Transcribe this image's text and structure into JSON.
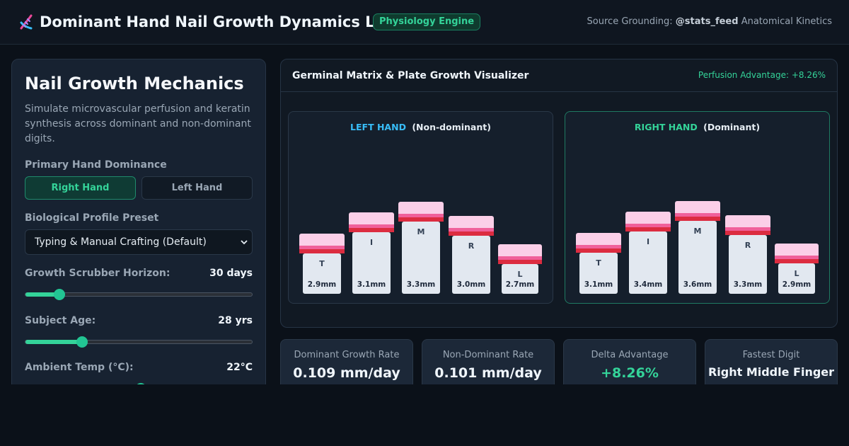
{
  "header": {
    "title": "Dominant Hand Nail Growth Dynamics Lab",
    "badge": "Physiology Engine",
    "source_prefix": "Source Grounding:",
    "source_handle": "@stats_feed",
    "source_suffix": "Anatomical Kinetics"
  },
  "controls": {
    "title": "Nail Growth Mechanics",
    "description": "Simulate microvascular perfusion and keratin synthesis across dominant and non-dominant digits.",
    "dominance_label": "Primary Hand Dominance",
    "dominance_options": [
      "Right Hand",
      "Left Hand"
    ],
    "dominance_selected": "Right Hand",
    "preset_label": "Biological Profile Preset",
    "preset_value": "Typing & Manual Crafting (Default)",
    "horizon_label": "Growth Scrubber Horizon:",
    "horizon_value": "30 days",
    "horizon_fraction": 0.15,
    "age_label": "Subject Age:",
    "age_value": "28 yrs",
    "age_fraction": 0.25,
    "temp_label": "Ambient Temp (°C):",
    "temp_value": "22°C"
  },
  "visualizer": {
    "title": "Germinal Matrix & Plate Growth Visualizer",
    "advantage": "Perfusion Advantage: +8.26%",
    "left_hand": {
      "name": "LEFT HAND",
      "role": "(Non-dominant)",
      "fingers": [
        {
          "letter": "T",
          "length": "2.9mm"
        },
        {
          "letter": "I",
          "length": "3.1mm"
        },
        {
          "letter": "M",
          "length": "3.3mm"
        },
        {
          "letter": "R",
          "length": "3.0mm"
        },
        {
          "letter": "L",
          "length": "2.7mm"
        }
      ]
    },
    "right_hand": {
      "name": "RIGHT HAND",
      "role": "(Dominant)",
      "fingers": [
        {
          "letter": "T",
          "length": "3.1mm"
        },
        {
          "letter": "I",
          "length": "3.4mm"
        },
        {
          "letter": "M",
          "length": "3.6mm"
        },
        {
          "letter": "R",
          "length": "3.3mm"
        },
        {
          "letter": "L",
          "length": "2.9mm"
        }
      ]
    }
  },
  "stats": [
    {
      "label": "Dominant Growth Rate",
      "value": "0.109 mm/day"
    },
    {
      "label": "Non-Dominant Rate",
      "value": "0.101 mm/day"
    },
    {
      "label": "Delta Advantage",
      "value": "+8.26%"
    },
    {
      "label": "Fastest Digit",
      "value": "Right Middle Finger"
    }
  ],
  "colors": {
    "accent": "#34d399",
    "left_hand": "#38bdf8",
    "nail_red": "#dc2c40",
    "nail_pink": "#fbcfe8"
  }
}
